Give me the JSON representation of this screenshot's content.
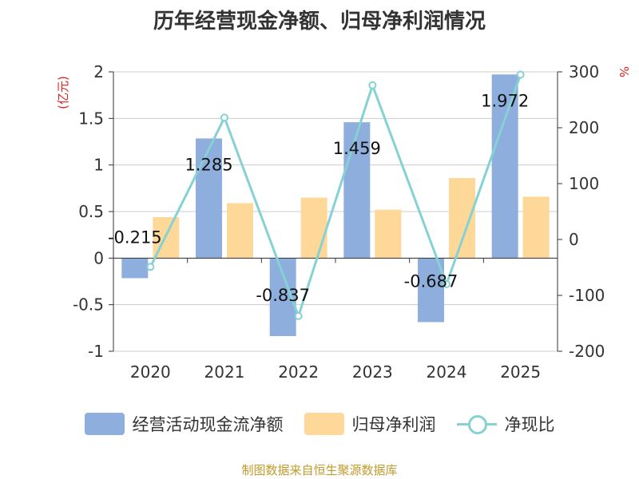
{
  "chart_data": {
    "type": "bar",
    "title": "历年经营现金净额、归母净利润情况",
    "categories": [
      "2020",
      "2021",
      "2022",
      "2023",
      "2024",
      "2025"
    ],
    "left_axis": {
      "label": "(亿元)",
      "ylim": [
        -1,
        2
      ],
      "ticks": [
        "2",
        "1.5",
        "1",
        "0.5",
        "0",
        "-0.5",
        "-1"
      ],
      "tick_values": [
        2,
        1.5,
        1,
        0.5,
        0,
        -0.5,
        -1
      ]
    },
    "right_axis": {
      "label": "%",
      "ylim": [
        -200,
        300
      ],
      "ticks": [
        "300",
        "200",
        "100",
        "0",
        "-100",
        "-200"
      ],
      "tick_values": [
        300,
        200,
        100,
        0,
        -100,
        -200
      ]
    },
    "series": [
      {
        "name": "经营活动现金流净额",
        "type": "bar",
        "axis": "left",
        "color": "#8eaedd",
        "values": [
          -0.215,
          1.285,
          -0.837,
          1.459,
          -0.687,
          1.972
        ],
        "labels": [
          "-0.215",
          "1.285",
          "-0.837",
          "1.459",
          "-0.687",
          "1.972"
        ]
      },
      {
        "name": "归母净利润",
        "type": "bar",
        "axis": "left",
        "color": "#fdd898",
        "values": [
          0.44,
          0.59,
          0.65,
          0.52,
          0.86,
          0.66
        ]
      },
      {
        "name": "净现比",
        "type": "line",
        "axis": "right",
        "color": "#85d1d3",
        "values": [
          -49,
          218,
          -137,
          276,
          -80,
          295
        ]
      }
    ]
  },
  "source": "制图数据来自恒生聚源数据库"
}
